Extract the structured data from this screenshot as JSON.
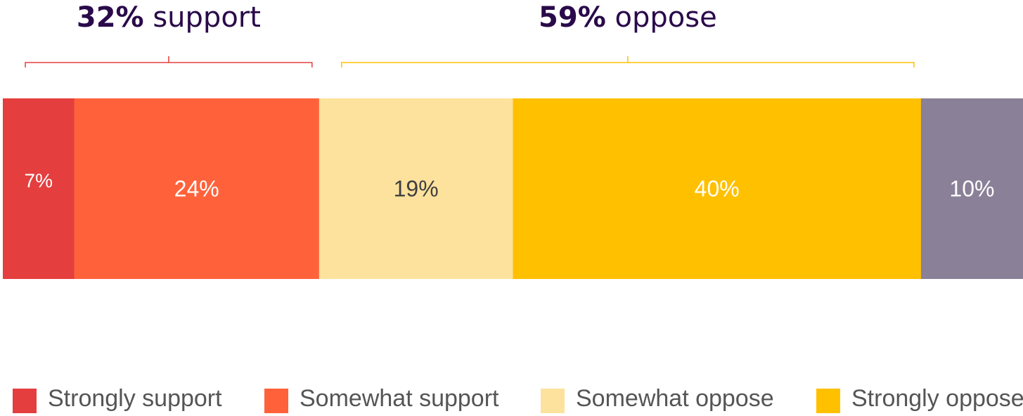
{
  "chart_data": {
    "type": "bar",
    "orientation": "horizontal-stacked",
    "categories": [
      "Strongly support",
      "Somewhat support",
      "Somewhat oppose",
      "Strongly oppose",
      ""
    ],
    "values": [
      7,
      24,
      19,
      40,
      10
    ],
    "value_labels": [
      "7%",
      "24%",
      "19%",
      "40%",
      "10%"
    ],
    "colors": [
      "#e53e3e",
      "#ff623b",
      "#fce29c",
      "#ffc000",
      "#8a8098"
    ],
    "label_colors": [
      "#ffffff",
      "#ffffff",
      "#404040",
      "#ffffff",
      "#ffffff"
    ],
    "groups": [
      {
        "value": "32%",
        "label": "support",
        "from": 0,
        "to": 1,
        "color": "#e53e3e"
      },
      {
        "value": "59%",
        "label": "oppose",
        "from": 2,
        "to": 3,
        "color": "#ffc000"
      }
    ],
    "legend": {
      "position": "bottom",
      "entries": [
        "Strongly support",
        "Somewhat support",
        "Somewhat oppose",
        "Strongly oppose"
      ]
    },
    "text_color": "#2a0a4a",
    "title": "",
    "xlabel": "",
    "ylabel": ""
  }
}
